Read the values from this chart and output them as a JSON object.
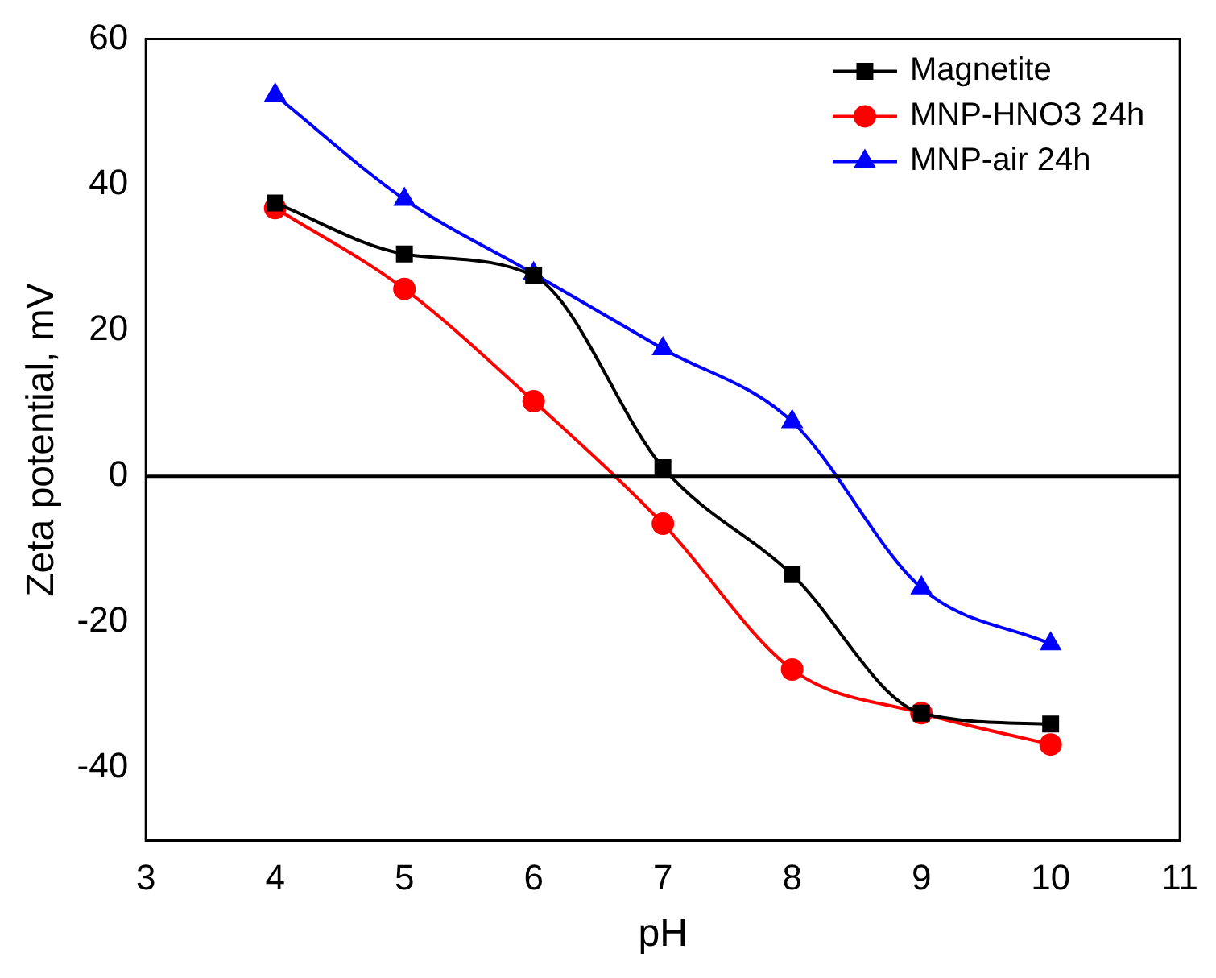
{
  "chart_data": {
    "type": "line",
    "xlabel": "pH",
    "ylabel": "Zeta potential, mV",
    "x": [
      4,
      5,
      6,
      7,
      8,
      9,
      10
    ],
    "series": [
      {
        "name": "Magnetite",
        "color": "#000000",
        "marker": "square",
        "values": [
          37.5,
          30.5,
          27.5,
          1.2,
          -13.5,
          -32.5,
          -34
        ]
      },
      {
        "name": "MNP-HNO3 24h",
        "color": "#ff0000",
        "marker": "circle",
        "values": [
          36.8,
          25.7,
          10.3,
          -6.5,
          -26.5,
          -32.5,
          -36.8
        ]
      },
      {
        "name": "MNP-air 24h",
        "color": "#0000ff",
        "marker": "triangle",
        "values": [
          52.3,
          38,
          27.8,
          17.5,
          7.5,
          -15.3,
          -23
        ]
      }
    ],
    "xlim": [
      3,
      11
    ],
    "xticks": [
      3,
      4,
      5,
      6,
      7,
      8,
      9,
      10,
      11
    ],
    "ylim": [
      -50,
      60
    ],
    "yticks": [
      -40,
      -20,
      0,
      20,
      40,
      60
    ],
    "ref_lines": [
      {
        "axis": "y",
        "value": 0,
        "color": "#000000"
      }
    ],
    "grid": false,
    "legend": "top right"
  }
}
